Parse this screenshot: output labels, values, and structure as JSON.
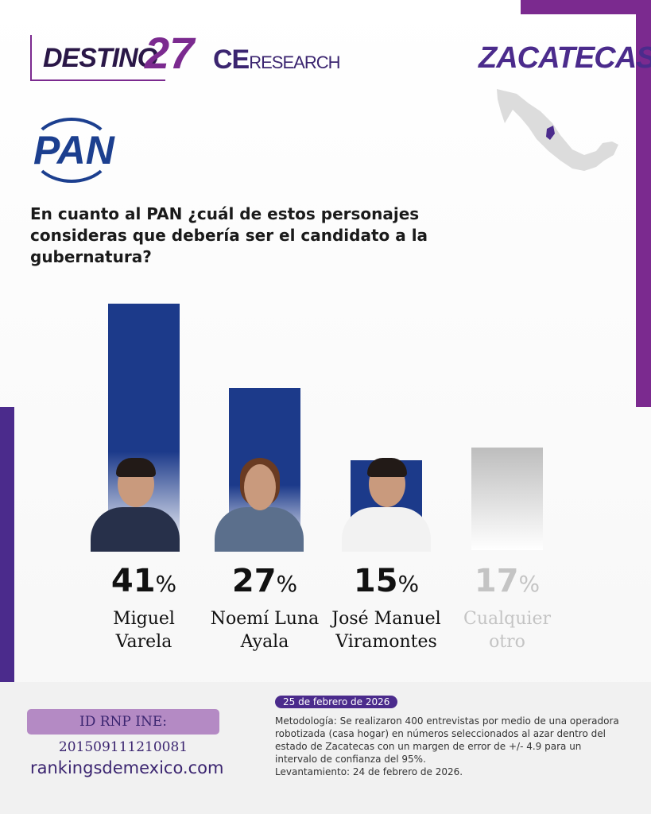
{
  "header": {
    "brand_destino": "DESTINO",
    "brand_27": "27",
    "brand_ce": "CE",
    "brand_research": "RESEARCH",
    "state": "ZACATECAS",
    "party": "PAN"
  },
  "question": "En cuanto al PAN ¿cuál de estos personajes consideras que debería ser el candidato a la gubernatura?",
  "chart_data": {
    "type": "bar",
    "title": "En cuanto al PAN ¿cuál de estos personajes consideras que debería ser el candidato a la gubernatura?",
    "categories": [
      "Miguel Varela",
      "Noemí Luna Ayala",
      "José Manuel Viramontes",
      "Cualquier otro"
    ],
    "values": [
      41,
      27,
      15,
      17
    ],
    "unit": "%",
    "ylim": [
      0,
      41
    ],
    "name_lines": [
      [
        "Miguel",
        "Varela"
      ],
      [
        "Noemí Luna",
        "Ayala"
      ],
      [
        "José Manuel",
        "Viramontes"
      ],
      [
        "Cualquier",
        "otro"
      ]
    ],
    "colors": [
      "#1c3a8a",
      "#1c3a8a",
      "#1c3a8a",
      "#bdbdbd"
    ]
  },
  "footer": {
    "rnp": "ID RNP INE: 201509111210081",
    "site": "rankingsdemexico.com",
    "date": "25 de febrero de 2026",
    "methodology": "Metodología: Se realizaron 400 entrevistas por medio de una operadora robotizada (casa hogar) en números seleccionados al azar dentro del estado de Zacatecas con un margen de error de +/- 4.9 para un intervalo de confianza del 95%.",
    "fieldwork": "Levantamiento: 24 de febrero de 2026."
  }
}
